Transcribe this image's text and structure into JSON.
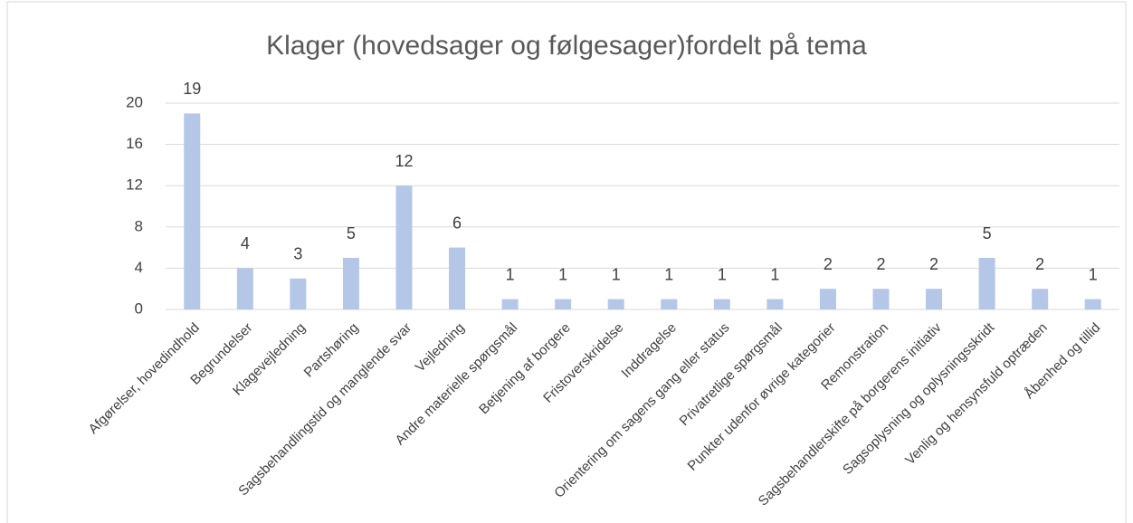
{
  "chart_data": {
    "type": "bar",
    "title": "Klager (hovedsager og følgesager)fordelt på tema",
    "categories": [
      "Afgørelser, hovedindhold",
      "Begrundelser",
      "Klagevejledning",
      "Partshøring",
      "Sagsbehandlingstid og manglende svar",
      "Vejledning",
      "Andre materielle spørgsmål",
      "Betjening af borgere",
      "Fristoverskridelse",
      "Inddragelse",
      "Orientering om sagens gang eller status",
      "Privatretlige spørgsmål",
      "Punkter udenfor øvrige kategorier",
      "Remonstration",
      "Sagsbehandlerskifte på borgerens initiativ",
      "Sagsoplysning og oplysningsskridt",
      "Venlig og hensynsfuld optræden",
      "Åbenhed og tillid"
    ],
    "values": [
      19,
      4,
      3,
      5,
      12,
      6,
      1,
      1,
      1,
      1,
      1,
      1,
      2,
      2,
      2,
      5,
      2,
      1
    ],
    "color": "#b4c7e7",
    "ylim": [
      0,
      20
    ],
    "yticks": [
      0,
      4,
      8,
      12,
      16,
      20
    ],
    "grid": true
  }
}
